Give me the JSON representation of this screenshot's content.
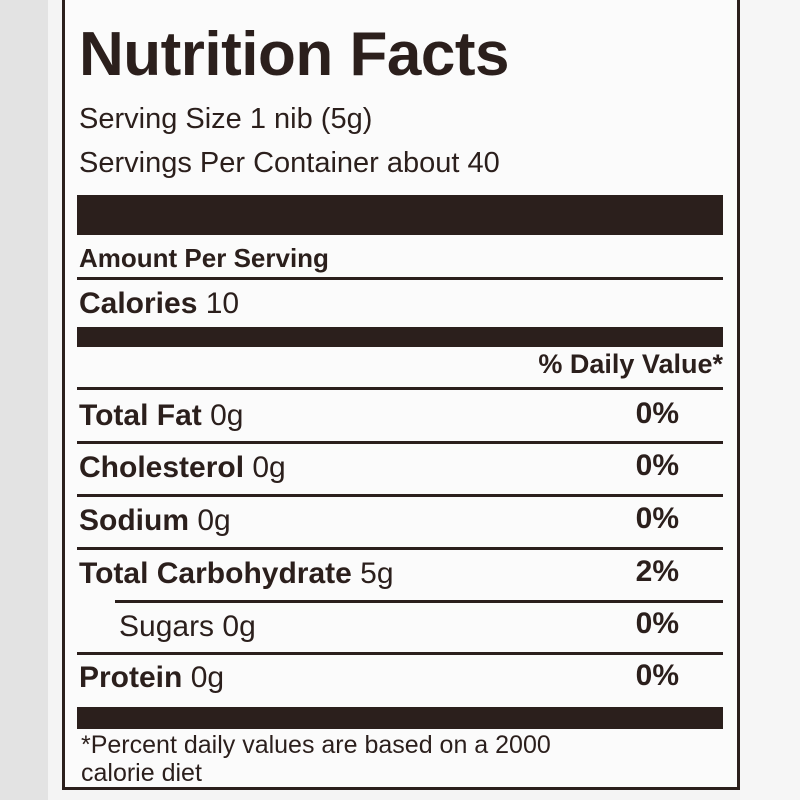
{
  "title": "Nutrition Facts",
  "serving_size": "Serving Size 1 nib (5g)",
  "servings_per_container": "Servings Per Container about 40",
  "amount_per_serving": "Amount Per Serving",
  "calories": {
    "label": "Calories",
    "value": "10"
  },
  "daily_value_header": "% Daily Value*",
  "nutrients": [
    {
      "label": "Total Fat",
      "amount": "0g",
      "dv": "0%"
    },
    {
      "label": "Cholesterol",
      "amount": "0g",
      "dv": "0%"
    },
    {
      "label": "Sodium",
      "amount": "0g",
      "dv": "0%"
    },
    {
      "label": "Total Carbohydrate",
      "amount": "5g",
      "dv": "2%"
    },
    {
      "label": "Sugars",
      "amount": "0g",
      "dv": "0%"
    },
    {
      "label": "Protein",
      "amount": "0g",
      "dv": "0%"
    }
  ],
  "footnote_line1": "*Percent daily values are based on a 2000",
  "footnote_line2": "calorie diet",
  "colors": {
    "ink": "#2b1f1c",
    "paper": "#fbfbfb"
  }
}
